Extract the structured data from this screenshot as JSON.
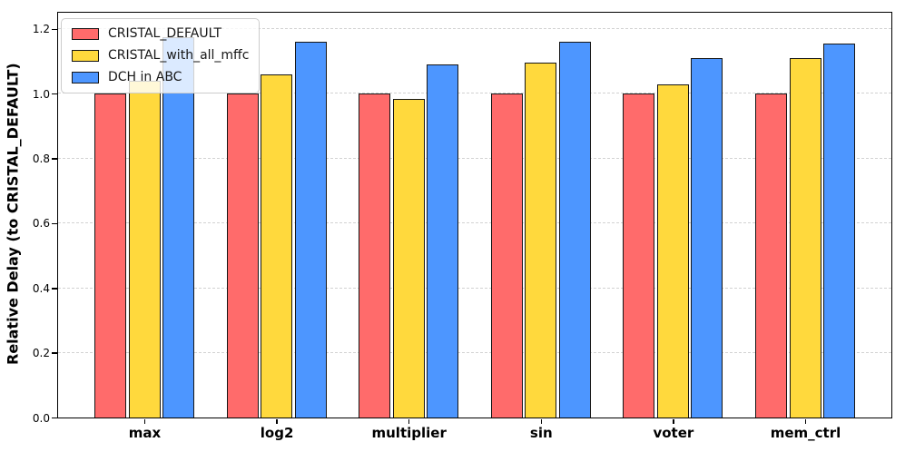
{
  "figure": {
    "background": "#ffffff"
  },
  "chart_data": {
    "type": "bar",
    "grouped": true,
    "title": "",
    "xlabel": "",
    "ylabel": "Relative Delay (to CRISTAL_DEFAULT)",
    "categories": [
      "max",
      "log2",
      "multiplier",
      "sin",
      "voter",
      "mem_ctrl"
    ],
    "series": [
      {
        "name": "CRISTAL_DEFAULT",
        "color": "#FF6B6B",
        "values": [
          1.0,
          1.0,
          1.0,
          1.0,
          1.0,
          1.0
        ]
      },
      {
        "name": "CRISTAL_with_all_mffc",
        "color": "#FFD93D",
        "values": [
          1.04,
          1.06,
          0.985,
          1.095,
          1.03,
          1.11
        ]
      },
      {
        "name": "DCH in ABC",
        "color": "#4D96FF",
        "values": [
          1.175,
          1.16,
          1.09,
          1.16,
          1.11,
          1.155
        ]
      }
    ],
    "bar_edge_color": "#161616",
    "ylim": [
      0,
      1.25
    ],
    "yticks": [
      0.0,
      0.2,
      0.4,
      0.6,
      0.8,
      1.0,
      1.2
    ],
    "ytick_labels": [
      "0.0",
      "0.2",
      "0.4",
      "0.6",
      "0.8",
      "1.0",
      "1.2"
    ],
    "grid": "horizontal-dashed",
    "grid_color": "#d2d2d2",
    "legend_position": "upper-left"
  }
}
